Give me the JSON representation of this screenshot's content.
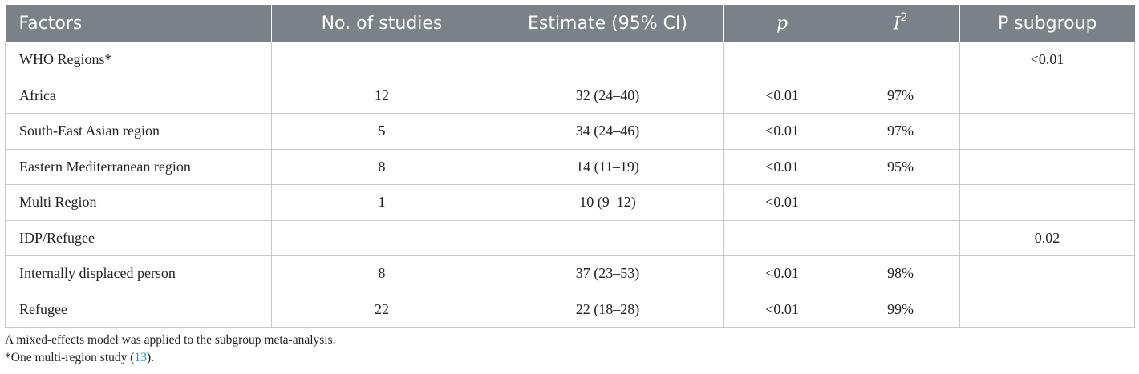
{
  "table": {
    "headers": {
      "factors": "Factors",
      "studies": "No. of studies",
      "estimate": "Estimate (95% CI)",
      "p": "p",
      "i2_letter": "I",
      "i2_sup": "2",
      "p_subgroup": "P subgroup"
    },
    "rows": [
      {
        "factor": "WHO Regions*",
        "studies": "",
        "estimate": "",
        "p": "",
        "i2": "",
        "p_subgroup": "<0.01"
      },
      {
        "factor": "Africa",
        "studies": "12",
        "estimate": "32 (24–40)",
        "p": "<0.01",
        "i2": "97%",
        "p_subgroup": ""
      },
      {
        "factor": "South-East Asian region",
        "studies": "5",
        "estimate": "34 (24–46)",
        "p": "<0.01",
        "i2": "97%",
        "p_subgroup": ""
      },
      {
        "factor": "Eastern Mediterranean region",
        "studies": "8",
        "estimate": "14 (11–19)",
        "p": "<0.01",
        "i2": "95%",
        "p_subgroup": ""
      },
      {
        "factor": "Multi Region",
        "studies": "1",
        "estimate": "10 (9–12)",
        "p": "<0.01",
        "i2": "",
        "p_subgroup": ""
      },
      {
        "factor": "IDP/Refugee",
        "studies": "",
        "estimate": "",
        "p": "",
        "i2": "",
        "p_subgroup": "0.02"
      },
      {
        "factor": "Internally displaced person",
        "studies": "8",
        "estimate": "37 (23–53)",
        "p": "<0.01",
        "i2": "98%",
        "p_subgroup": ""
      },
      {
        "factor": "Refugee",
        "studies": "22",
        "estimate": "22 (18–28)",
        "p": "<0.01",
        "i2": "99%",
        "p_subgroup": ""
      }
    ]
  },
  "notes": {
    "line1": "A mixed-effects model was applied to the subgroup meta-analysis.",
    "line2_prefix": "*One multi-region study (",
    "line2_ref": "13",
    "line2_suffix": ")."
  }
}
